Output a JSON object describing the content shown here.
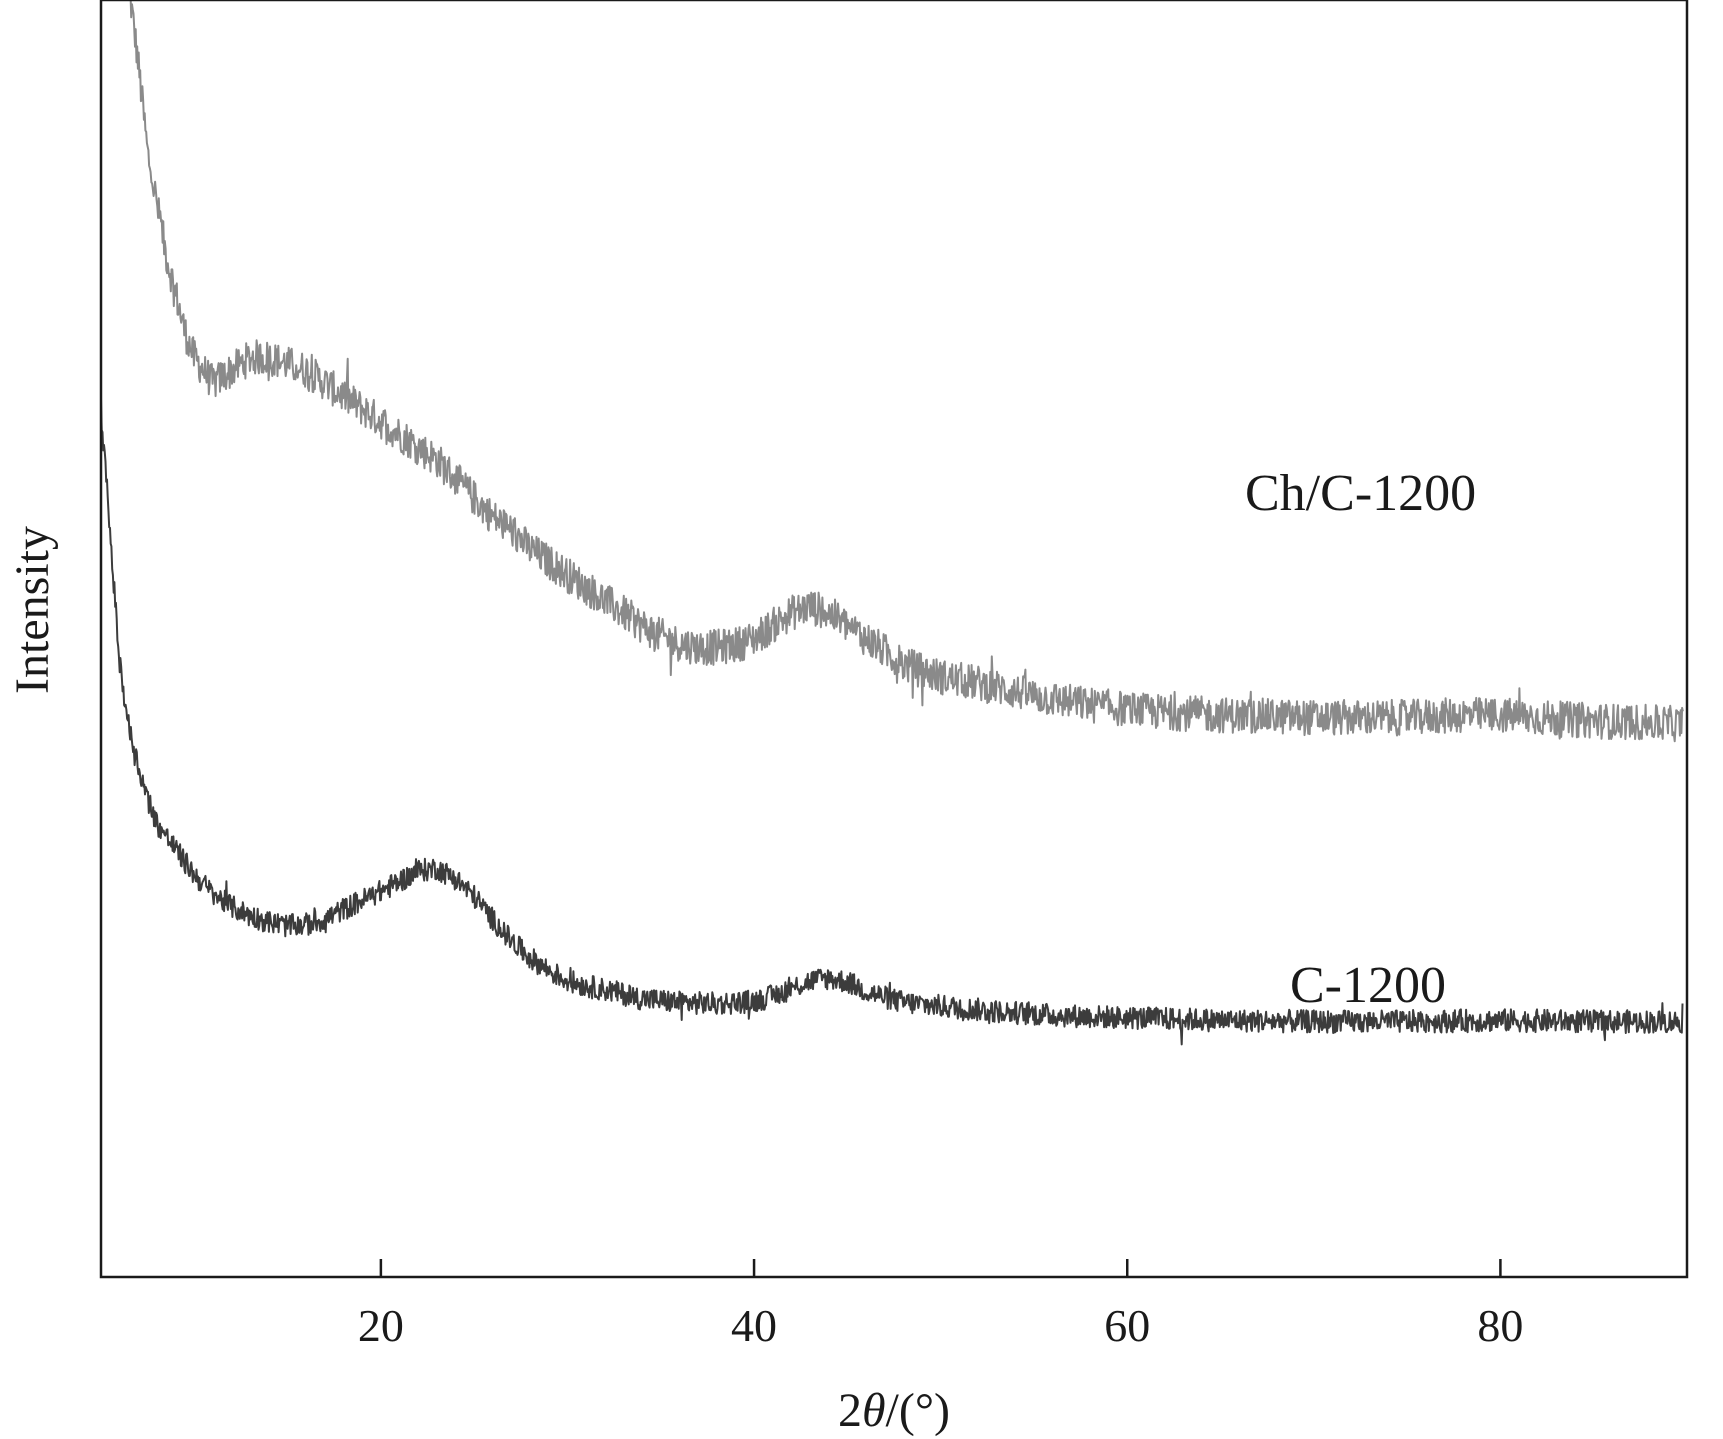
{
  "chart_data": {
    "type": "line",
    "title": "",
    "xlabel_prefix": "2",
    "xlabel_theta": "θ",
    "xlabel_suffix": "/(°)",
    "ylabel": "Intensity",
    "xlim": [
      5,
      90
    ],
    "ylim": [
      0,
      100
    ],
    "xticks": [
      20,
      40,
      60,
      80
    ],
    "yticks_shown": false,
    "grid": false,
    "series": [
      {
        "name": "Ch/C-1200",
        "color": "#8a8a8a",
        "noise": 1.4,
        "points": [
          [
            6.5,
            101
          ],
          [
            7.0,
            95
          ],
          [
            7.5,
            88
          ],
          [
            8.0,
            84
          ],
          [
            8.5,
            80
          ],
          [
            9.0,
            77
          ],
          [
            9.5,
            74
          ],
          [
            10.0,
            72
          ],
          [
            11.0,
            70
          ],
          [
            12.0,
            71
          ],
          [
            13.0,
            72
          ],
          [
            14.0,
            72
          ],
          [
            15.0,
            71.5
          ],
          [
            16.0,
            71
          ],
          [
            17.0,
            70
          ],
          [
            18.0,
            69
          ],
          [
            19.0,
            68
          ],
          [
            20.0,
            67
          ],
          [
            21.0,
            66
          ],
          [
            22.0,
            65
          ],
          [
            23.0,
            64
          ],
          [
            24.0,
            62.5
          ],
          [
            25.0,
            61
          ],
          [
            26.0,
            59.5
          ],
          [
            27.0,
            58.5
          ],
          [
            28.0,
            57
          ],
          [
            29.0,
            56
          ],
          [
            30.0,
            55
          ],
          [
            31.0,
            54
          ],
          [
            32.0,
            53
          ],
          [
            33.0,
            52
          ],
          [
            34.0,
            51
          ],
          [
            35.0,
            50.2
          ],
          [
            36.0,
            49.6
          ],
          [
            37.0,
            49.3
          ],
          [
            38.0,
            49.3
          ],
          [
            39.0,
            49.5
          ],
          [
            40.0,
            50
          ],
          [
            41.0,
            51
          ],
          [
            42.0,
            52
          ],
          [
            43.0,
            52.5
          ],
          [
            44.0,
            52
          ],
          [
            45.0,
            51
          ],
          [
            46.0,
            50
          ],
          [
            47.0,
            49
          ],
          [
            48.0,
            48
          ],
          [
            50.0,
            47
          ],
          [
            52.0,
            46.5
          ],
          [
            55.0,
            45.5
          ],
          [
            58.0,
            44.8
          ],
          [
            61.0,
            44.3
          ],
          [
            65.0,
            44
          ],
          [
            70.0,
            43.8
          ],
          [
            75.0,
            43.8
          ],
          [
            78.0,
            44
          ],
          [
            80.0,
            44
          ],
          [
            83.0,
            43.7
          ],
          [
            86.0,
            43.5
          ],
          [
            89.8,
            43.3
          ]
        ]
      },
      {
        "name": "C-1200",
        "color": "#3c3c3c",
        "noise": 0.9,
        "points": [
          [
            5.0,
            68
          ],
          [
            5.5,
            58
          ],
          [
            6.0,
            48
          ],
          [
            6.5,
            43
          ],
          [
            7.0,
            40
          ],
          [
            7.5,
            37.5
          ],
          [
            8.0,
            35.5
          ],
          [
            9.0,
            33.5
          ],
          [
            10.0,
            31.5
          ],
          [
            11.0,
            30
          ],
          [
            12.0,
            29
          ],
          [
            13.0,
            28.3
          ],
          [
            14.0,
            27.8
          ],
          [
            15.0,
            27.5
          ],
          [
            16.0,
            27.6
          ],
          [
            17.0,
            28
          ],
          [
            18.0,
            28.8
          ],
          [
            19.0,
            29.5
          ],
          [
            20.0,
            30.2
          ],
          [
            21.0,
            31
          ],
          [
            22.0,
            31.8
          ],
          [
            23.0,
            32
          ],
          [
            24.0,
            31.2
          ],
          [
            25.0,
            29.8
          ],
          [
            26.0,
            28
          ],
          [
            27.0,
            26.3
          ],
          [
            28.0,
            25
          ],
          [
            29.0,
            24
          ],
          [
            30.0,
            23.2
          ],
          [
            31.0,
            22.8
          ],
          [
            32.0,
            22.5
          ],
          [
            34.0,
            21.8
          ],
          [
            36.0,
            21.5
          ],
          [
            38.0,
            21.4
          ],
          [
            40.0,
            21.6
          ],
          [
            41.0,
            22
          ],
          [
            42.0,
            22.6
          ],
          [
            43.0,
            23.2
          ],
          [
            44.0,
            23.4
          ],
          [
            45.0,
            23.1
          ],
          [
            46.0,
            22.4
          ],
          [
            47.0,
            21.9
          ],
          [
            48.0,
            21.5
          ],
          [
            50.0,
            21.2
          ],
          [
            53.0,
            20.8
          ],
          [
            56.0,
            20.5
          ],
          [
            60.0,
            20.3
          ],
          [
            65.0,
            20.1
          ],
          [
            70.0,
            20
          ],
          [
            75.0,
            20
          ],
          [
            80.0,
            20.1
          ],
          [
            85.0,
            20
          ],
          [
            89.8,
            20
          ]
        ]
      }
    ]
  }
}
